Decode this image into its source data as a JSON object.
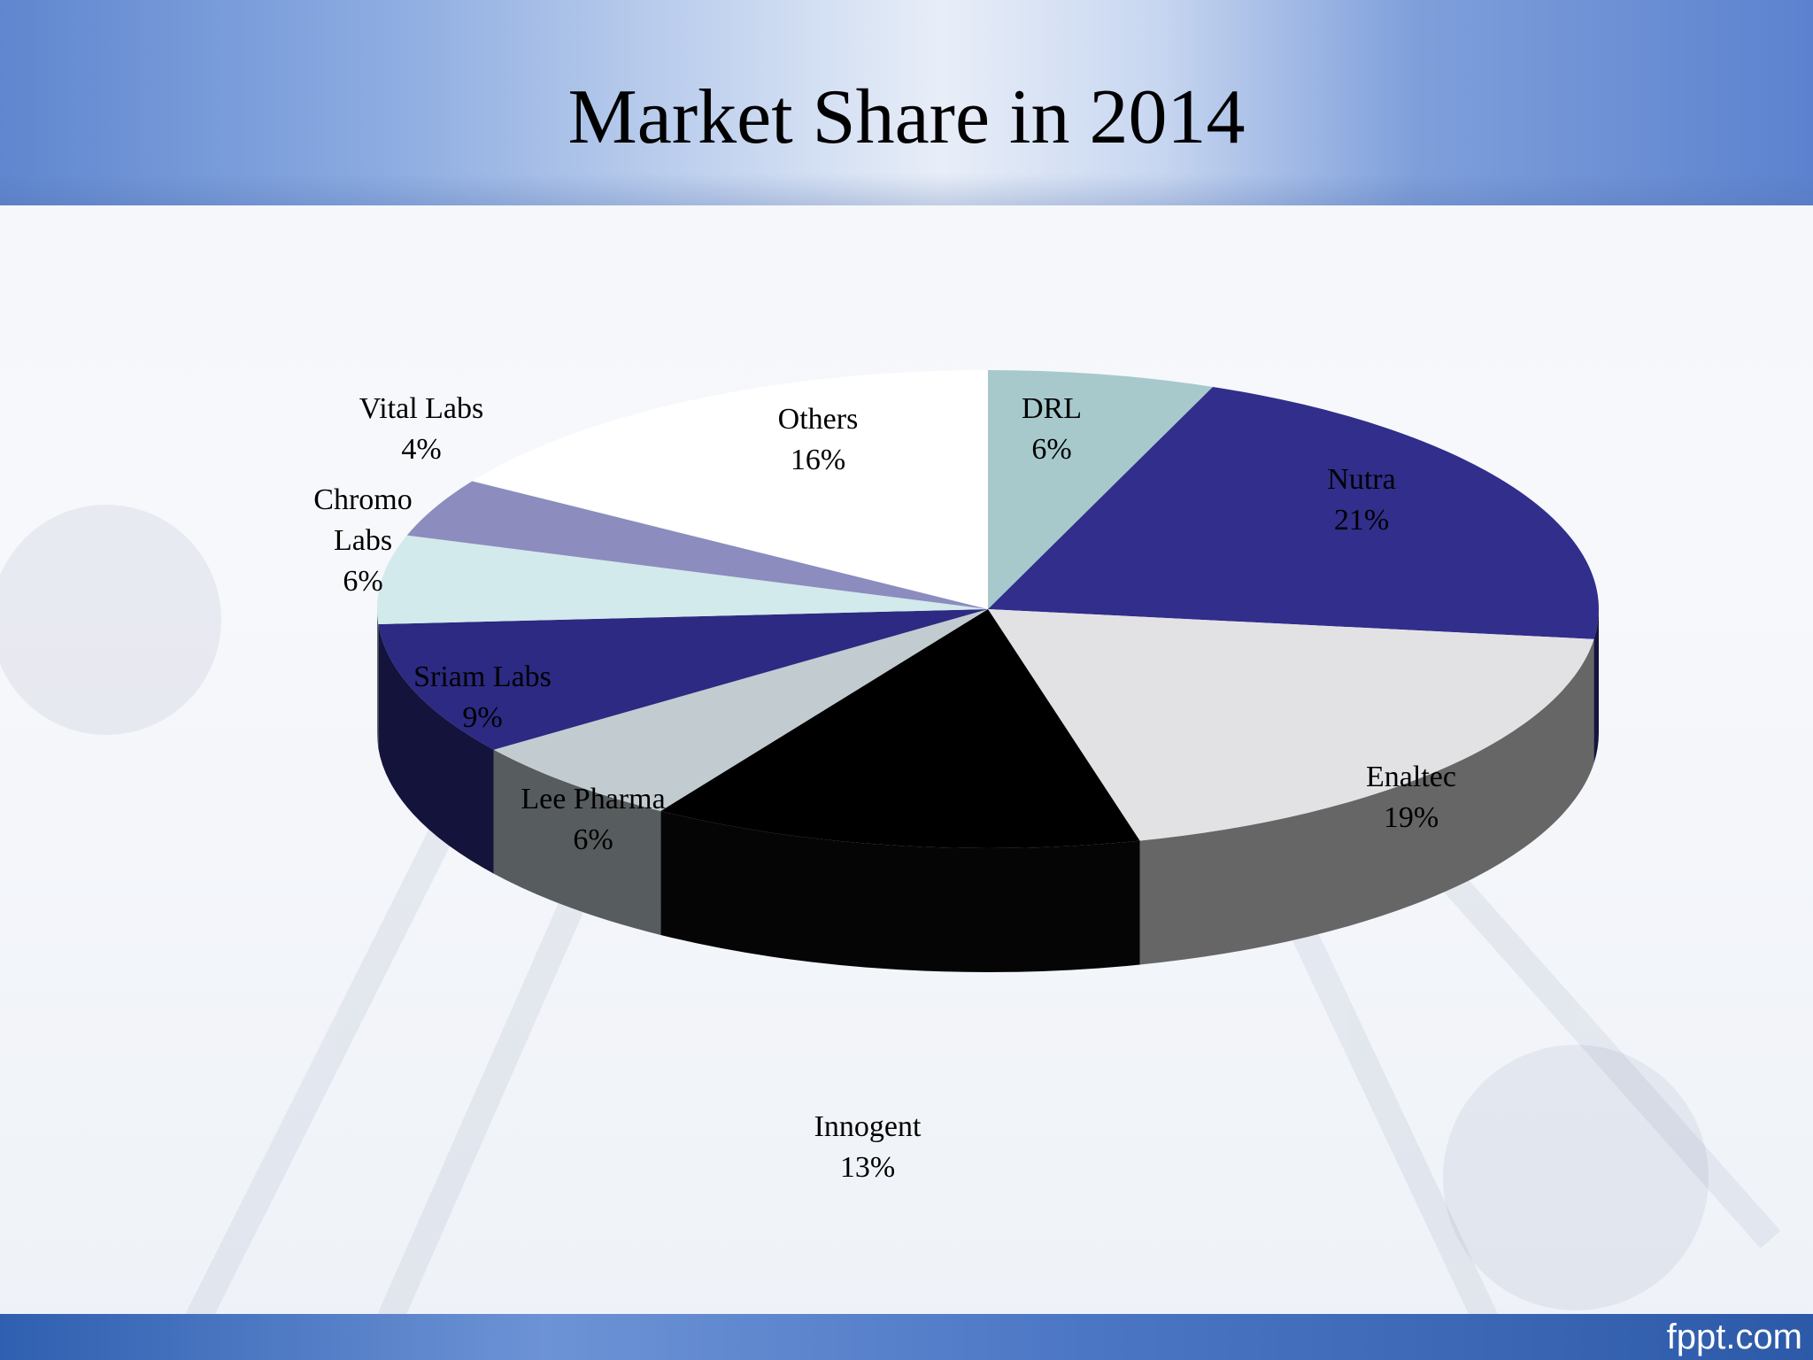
{
  "slide": {
    "title": "Market Share in 2014",
    "footer_brand": "fppt.com"
  },
  "chart_data": {
    "type": "pie",
    "title": "Market Share in 2014",
    "style": "3d",
    "slices": [
      {
        "label": "DRL",
        "value": 6,
        "value_label": "6%",
        "color": "#a7c9cc",
        "label_color": "#000000"
      },
      {
        "label": "Nutra",
        "value": 21,
        "value_label": "21%",
        "color": "#312e8c",
        "label_color": "#000000"
      },
      {
        "label": "Enaltec",
        "value": 19,
        "value_label": "19%",
        "color": "#e2e2e4",
        "label_color": "#000000"
      },
      {
        "label": "Innogent",
        "value": 13,
        "value_label": "13%",
        "color": "#000000",
        "label_color": "#000000"
      },
      {
        "label": "Lee Pharma",
        "value": 6,
        "value_label": "6%",
        "color": "#c2ccd0",
        "label_color": "#000000"
      },
      {
        "label": "Sriam Labs",
        "value": 9,
        "value_label": "9%",
        "color": "#2c2a82",
        "label_color": "#000000"
      },
      {
        "label": "Chromo Labs",
        "value": 6,
        "value_label": "6%",
        "color": "#d2eaeb",
        "label_color": "#000000"
      },
      {
        "label": "Vital Labs",
        "value": 4,
        "value_label": "4%",
        "color": "#8c8cbf",
        "label_color": "#000000"
      },
      {
        "label": "Others",
        "value": 16,
        "value_label": "16%",
        "color": "#ffffff",
        "label_color": "#000000"
      }
    ]
  }
}
